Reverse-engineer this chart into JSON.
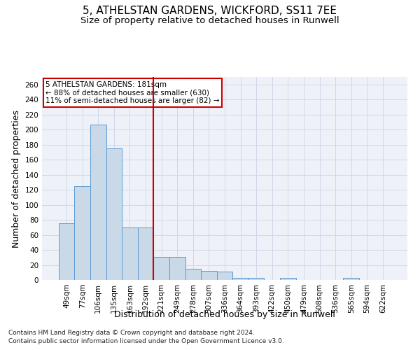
{
  "title_line1": "5, ATHELSTAN GARDENS, WICKFORD, SS11 7EE",
  "title_line2": "Size of property relative to detached houses in Runwell",
  "xlabel": "Distribution of detached houses by size in Runwell",
  "ylabel": "Number of detached properties",
  "categories": [
    "49sqm",
    "77sqm",
    "106sqm",
    "135sqm",
    "163sqm",
    "192sqm",
    "221sqm",
    "249sqm",
    "278sqm",
    "307sqm",
    "336sqm",
    "364sqm",
    "393sqm",
    "422sqm",
    "450sqm",
    "479sqm",
    "508sqm",
    "536sqm",
    "565sqm",
    "594sqm",
    "622sqm"
  ],
  "values": [
    75,
    125,
    207,
    175,
    70,
    70,
    31,
    31,
    15,
    12,
    11,
    3,
    3,
    0,
    3,
    0,
    0,
    0,
    3,
    0,
    0
  ],
  "bar_color": "#c9d9e8",
  "bar_edge_color": "#5b9bd5",
  "vline_x_index": 5,
  "vline_color": "#cc0000",
  "annotation_text": "5 ATHELSTAN GARDENS: 181sqm\n← 88% of detached houses are smaller (630)\n11% of semi-detached houses are larger (82) →",
  "annotation_box_color": "white",
  "annotation_box_edge_color": "#cc0000",
  "ylim": [
    0,
    270
  ],
  "yticks": [
    0,
    20,
    40,
    60,
    80,
    100,
    120,
    140,
    160,
    180,
    200,
    220,
    240,
    260
  ],
  "grid_color": "#d0d8e8",
  "background_color": "#eef2f8",
  "footer_line1": "Contains HM Land Registry data © Crown copyright and database right 2024.",
  "footer_line2": "Contains public sector information licensed under the Open Government Licence v3.0.",
  "title_fontsize": 11,
  "subtitle_fontsize": 9.5,
  "axis_label_fontsize": 9,
  "tick_fontsize": 7.5,
  "annotation_fontsize": 7.5,
  "footer_fontsize": 6.5
}
